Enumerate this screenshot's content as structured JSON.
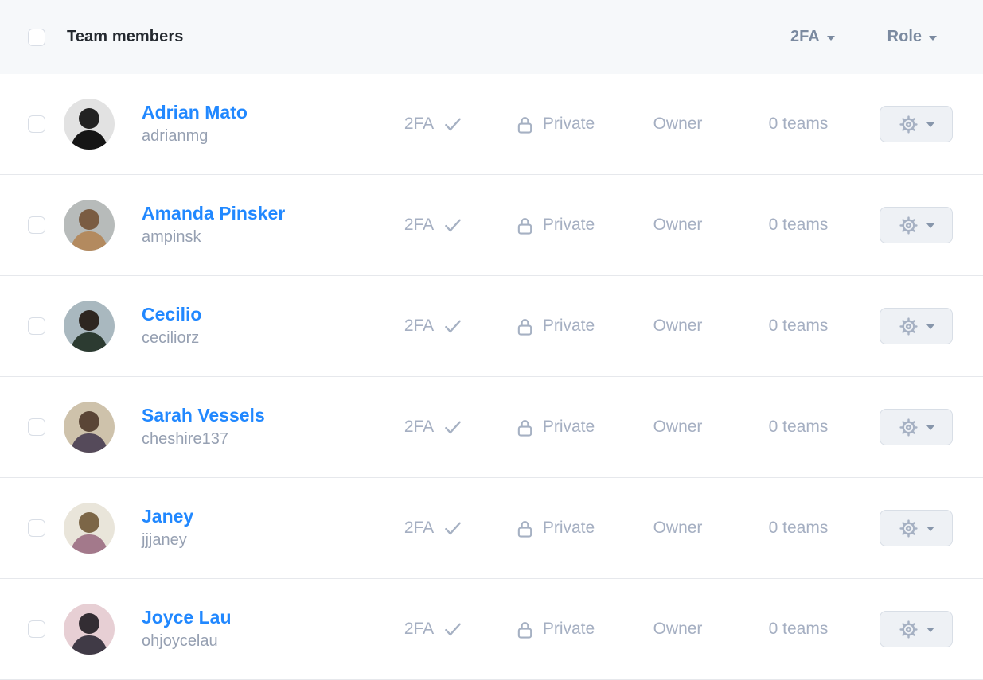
{
  "colors": {
    "link_blue": "#2188ff"
  },
  "header": {
    "title": "Team members",
    "filters": [
      {
        "label": "2FA"
      },
      {
        "label": "Role"
      }
    ]
  },
  "members": [
    {
      "name": "Adrian Mato",
      "username": "adrianmg",
      "twofa_label": "2FA",
      "visibility": "Private",
      "role": "Owner",
      "teams": "0 teams",
      "avatar": {
        "bg": "#e2e2e2",
        "hair": "#222222",
        "body": "#151515"
      }
    },
    {
      "name": "Amanda Pinsker",
      "username": "ampinsk",
      "twofa_label": "2FA",
      "visibility": "Private",
      "role": "Owner",
      "teams": "0 teams",
      "avatar": {
        "bg": "#b7bbba",
        "hair": "#7a5c42",
        "body": "#b38a5f"
      }
    },
    {
      "name": "Cecilio",
      "username": "ceciliorz",
      "twofa_label": "2FA",
      "visibility": "Private",
      "role": "Owner",
      "teams": "0 teams",
      "avatar": {
        "bg": "#a9b8bf",
        "hair": "#2e2620",
        "body": "#2c3b31"
      }
    },
    {
      "name": "Sarah Vessels",
      "username": "cheshire137",
      "twofa_label": "2FA",
      "visibility": "Private",
      "role": "Owner",
      "teams": "0 teams",
      "avatar": {
        "bg": "#cec2ab",
        "hair": "#5a4536",
        "body": "#554a5a"
      }
    },
    {
      "name": "Janey",
      "username": "jjjaney",
      "twofa_label": "2FA",
      "visibility": "Private",
      "role": "Owner",
      "teams": "0 teams",
      "avatar": {
        "bg": "#e9e5da",
        "hair": "#7c6647",
        "body": "#a3798b"
      }
    },
    {
      "name": "Joyce Lau",
      "username": "ohjoycelau",
      "twofa_label": "2FA",
      "visibility": "Private",
      "role": "Owner",
      "teams": "0 teams",
      "avatar": {
        "bg": "#e7cfd4",
        "hair": "#332d33",
        "body": "#403a46"
      }
    }
  ]
}
